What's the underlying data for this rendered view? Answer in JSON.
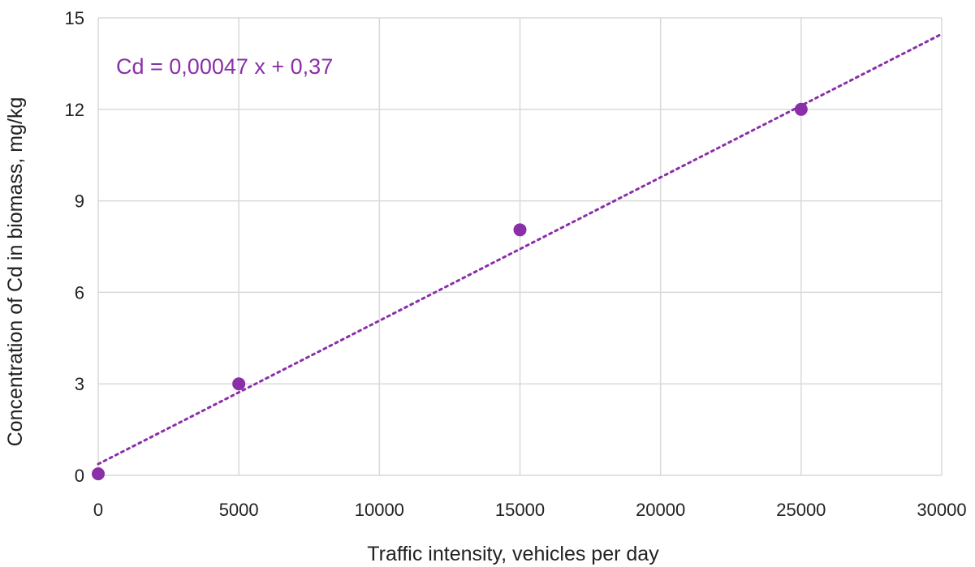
{
  "chart_data": {
    "type": "scatter",
    "title": "",
    "xlabel": "Traffic intensity, vehicles per day",
    "ylabel": "Concentration of Cd in biomass, mg/kg",
    "xlim": [
      0,
      30000
    ],
    "ylim": [
      0,
      15
    ],
    "x_ticks": [
      "0",
      "5000",
      "10000",
      "15000",
      "20000",
      "25000",
      "30000"
    ],
    "y_ticks": [
      "0",
      "3",
      "6",
      "9",
      "12",
      "15"
    ],
    "grid": "vertical and horizontal",
    "series": [
      {
        "x": [
          0,
          5000,
          15000,
          25000
        ],
        "y": [
          0.05,
          3.0,
          8.05,
          12.0
        ],
        "color": "#8a2fa8"
      }
    ],
    "trendline": {
      "type": "linear",
      "slope": 0.00047,
      "intercept": 0.37,
      "style": "dotted",
      "color": "#8a2fa8",
      "x_range": [
        0,
        30000
      ],
      "label": "Cd = 0,00047 x + 0,37"
    }
  }
}
